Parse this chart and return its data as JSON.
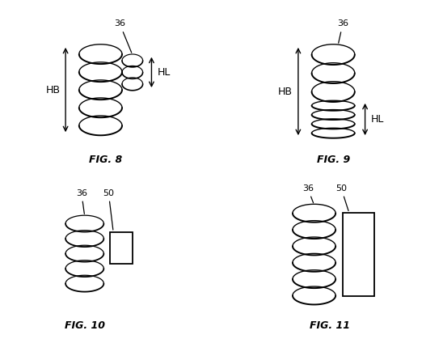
{
  "bg_color": "#ffffff",
  "line_color": "#000000",
  "fig8_title": "FIG. 8",
  "fig9_title": "FIG. 9",
  "fig10_title": "FIG. 10",
  "fig11_title": "FIG. 11",
  "label_36": "36",
  "label_50": "50",
  "label_HB": "HB",
  "label_HL": "HL"
}
